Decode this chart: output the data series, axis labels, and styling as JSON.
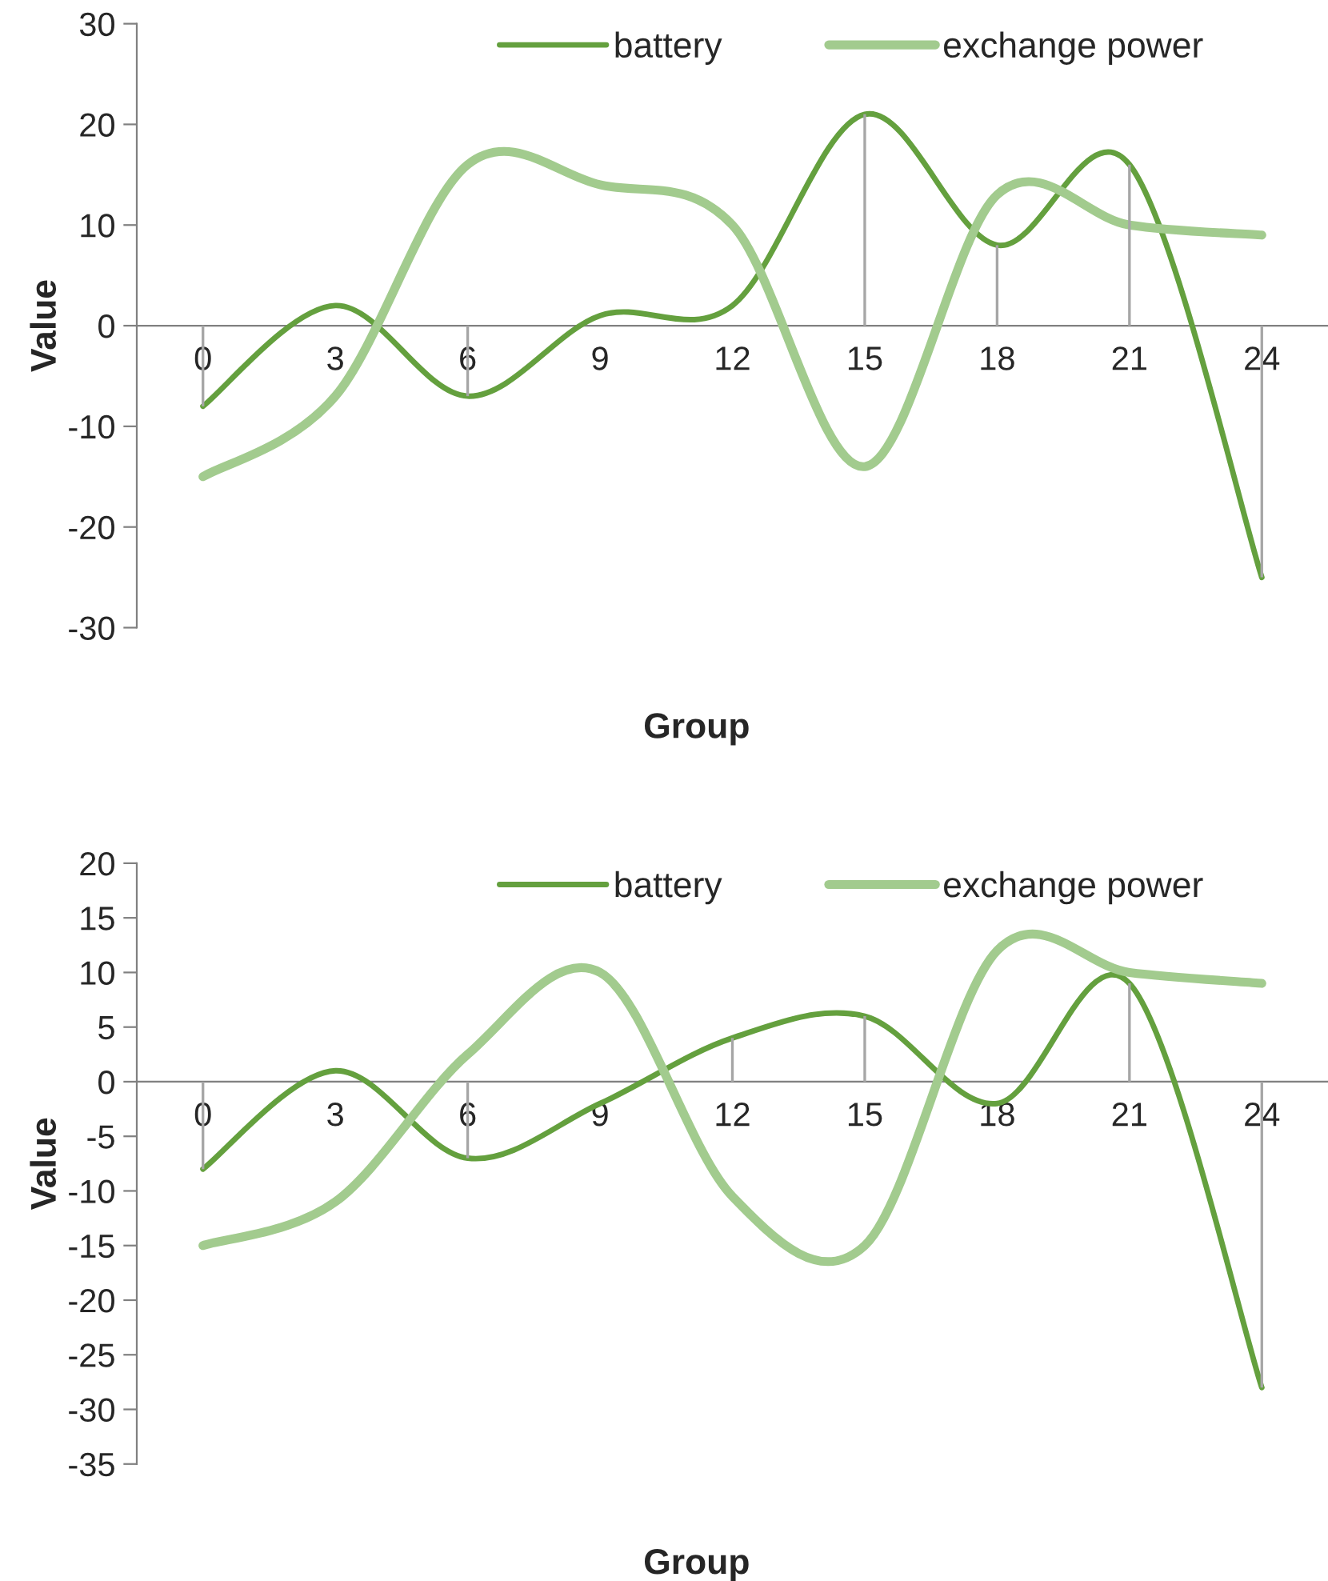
{
  "chart_data": [
    {
      "type": "line",
      "xlabel": "Group",
      "ylabel": "Value",
      "categories": [
        "0",
        "3",
        "6",
        "9",
        "12",
        "15",
        "18",
        "21",
        "24"
      ],
      "ylim": [
        -30,
        30
      ],
      "yticks": [
        -30,
        -20,
        -10,
        0,
        10,
        20,
        30
      ],
      "legend": "top",
      "grid": false,
      "series": [
        {
          "name": "battery",
          "color": "#64a03e",
          "values": [
            -8,
            2,
            -7,
            1,
            2,
            21,
            8,
            16,
            -25
          ],
          "errors": [
            [
              -8,
              0
            ],
            null,
            [
              -7,
              0
            ],
            null,
            null,
            [
              0,
              21
            ],
            [
              0,
              8
            ],
            [
              0,
              16
            ],
            [
              -25,
              0
            ]
          ]
        },
        {
          "name": "exchange power",
          "color": "#a2cb8e",
          "values": [
            -15,
            -7,
            16,
            14,
            10,
            -14,
            13,
            10,
            9
          ]
        }
      ]
    },
    {
      "type": "line",
      "xlabel": "Group",
      "ylabel": "Value",
      "categories": [
        "0",
        "3",
        "6",
        "9",
        "12",
        "15",
        "18",
        "21",
        "24"
      ],
      "ylim": [
        -35,
        20
      ],
      "yticks": [
        -35,
        -30,
        -25,
        -20,
        -15,
        -10,
        -5,
        0,
        5,
        10,
        15,
        20
      ],
      "legend": "top",
      "grid": false,
      "series": [
        {
          "name": "battery",
          "color": "#64a03e",
          "values": [
            -8,
            1,
            -7,
            -2,
            4,
            6,
            -2,
            9,
            -28
          ],
          "errors": [
            [
              -8,
              0
            ],
            null,
            [
              -7,
              0
            ],
            null,
            [
              0,
              4
            ],
            [
              0,
              6
            ],
            null,
            [
              0,
              9
            ],
            [
              -28,
              0
            ]
          ]
        },
        {
          "name": "exchange power",
          "color": "#a2cb8e",
          "values": [
            -15,
            -11,
            2.5,
            10,
            -10.5,
            -15,
            12,
            10,
            9
          ]
        }
      ]
    }
  ]
}
